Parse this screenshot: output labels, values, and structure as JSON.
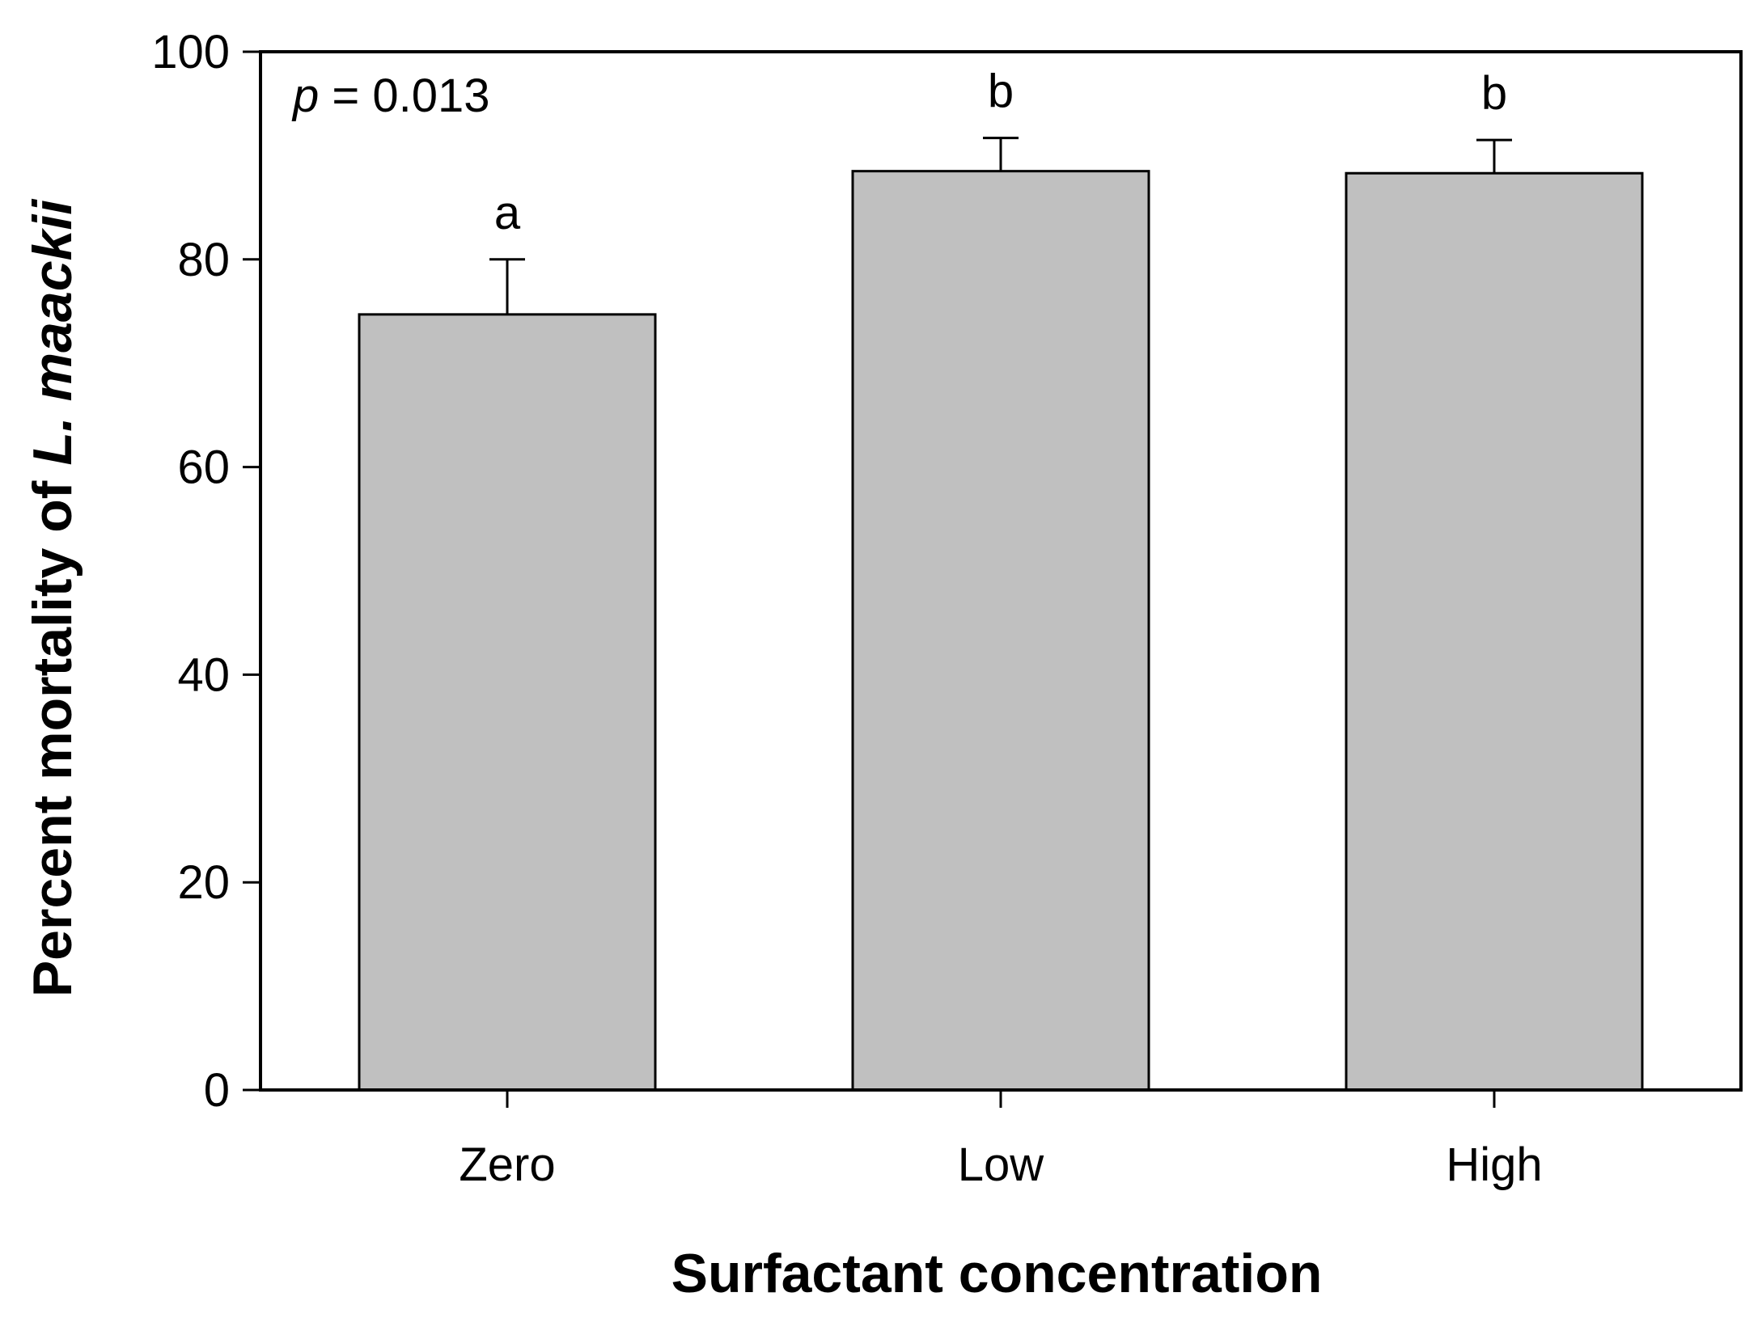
{
  "chart_data": {
    "type": "bar",
    "categories": [
      "Zero",
      "Low",
      "High"
    ],
    "values": [
      74.7,
      88.5,
      88.3
    ],
    "errors": [
      5.3,
      3.2,
      3.2
    ],
    "significance_letters": [
      "a",
      "b",
      "b"
    ],
    "xlabel": "Surfactant concentration",
    "ylabel_prefix": "Percent mortality of ",
    "ylabel_italic": "L. maackii",
    "ylim": [
      0,
      100
    ],
    "yticks": [
      0,
      20,
      40,
      60,
      80,
      100
    ],
    "annotation_italic": "p",
    "annotation_rest": " = 0.013",
    "bar_color": "#c0c0c0",
    "grid": false
  }
}
